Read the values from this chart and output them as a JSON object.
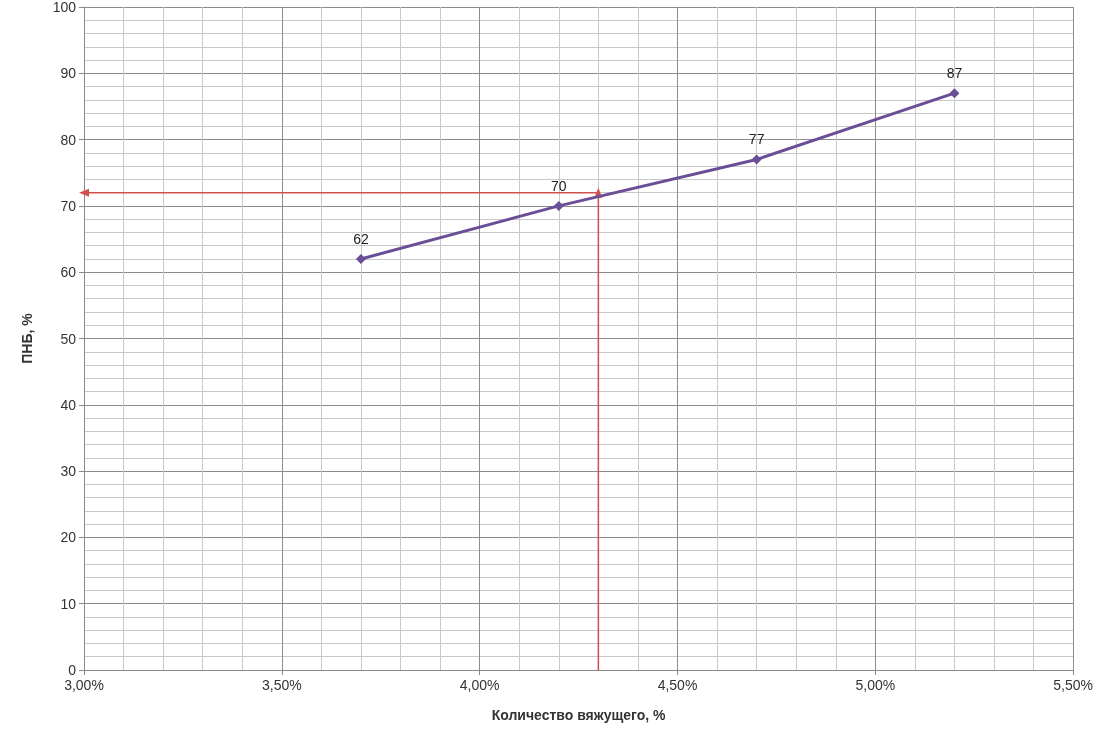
{
  "chart_data": {
    "type": "line",
    "xlabel": "Количество вяжущего, %",
    "ylabel": "ПНБ, %",
    "xlim": [
      3.0,
      5.5
    ],
    "xticks": [
      {
        "value": 3.0,
        "label": "3,00%"
      },
      {
        "value": 3.5,
        "label": "3,50%"
      },
      {
        "value": 4.0,
        "label": "4,00%"
      },
      {
        "value": 4.5,
        "label": "4,50%"
      },
      {
        "value": 5.0,
        "label": "5,00%"
      },
      {
        "value": 5.5,
        "label": "5,50%"
      }
    ],
    "ylim": [
      0,
      100
    ],
    "yticks": [
      0,
      10,
      20,
      30,
      40,
      50,
      60,
      70,
      80,
      90,
      100
    ],
    "grid": true,
    "series": [
      {
        "color": "#6b4f96",
        "x": [
          3.7,
          4.2,
          4.7,
          5.2
        ],
        "values": [
          62,
          70,
          77,
          87
        ],
        "marker": "diamond",
        "data_labels": true
      },
      {
        "color": "#d0504d",
        "x": [
          4.3,
          4.3
        ],
        "values": [
          0,
          72
        ],
        "marker": "triangle"
      },
      {
        "color": "#d0504d",
        "x": [
          4.3,
          3.0
        ],
        "values": [
          72,
          72
        ],
        "marker": "triangle"
      }
    ]
  }
}
